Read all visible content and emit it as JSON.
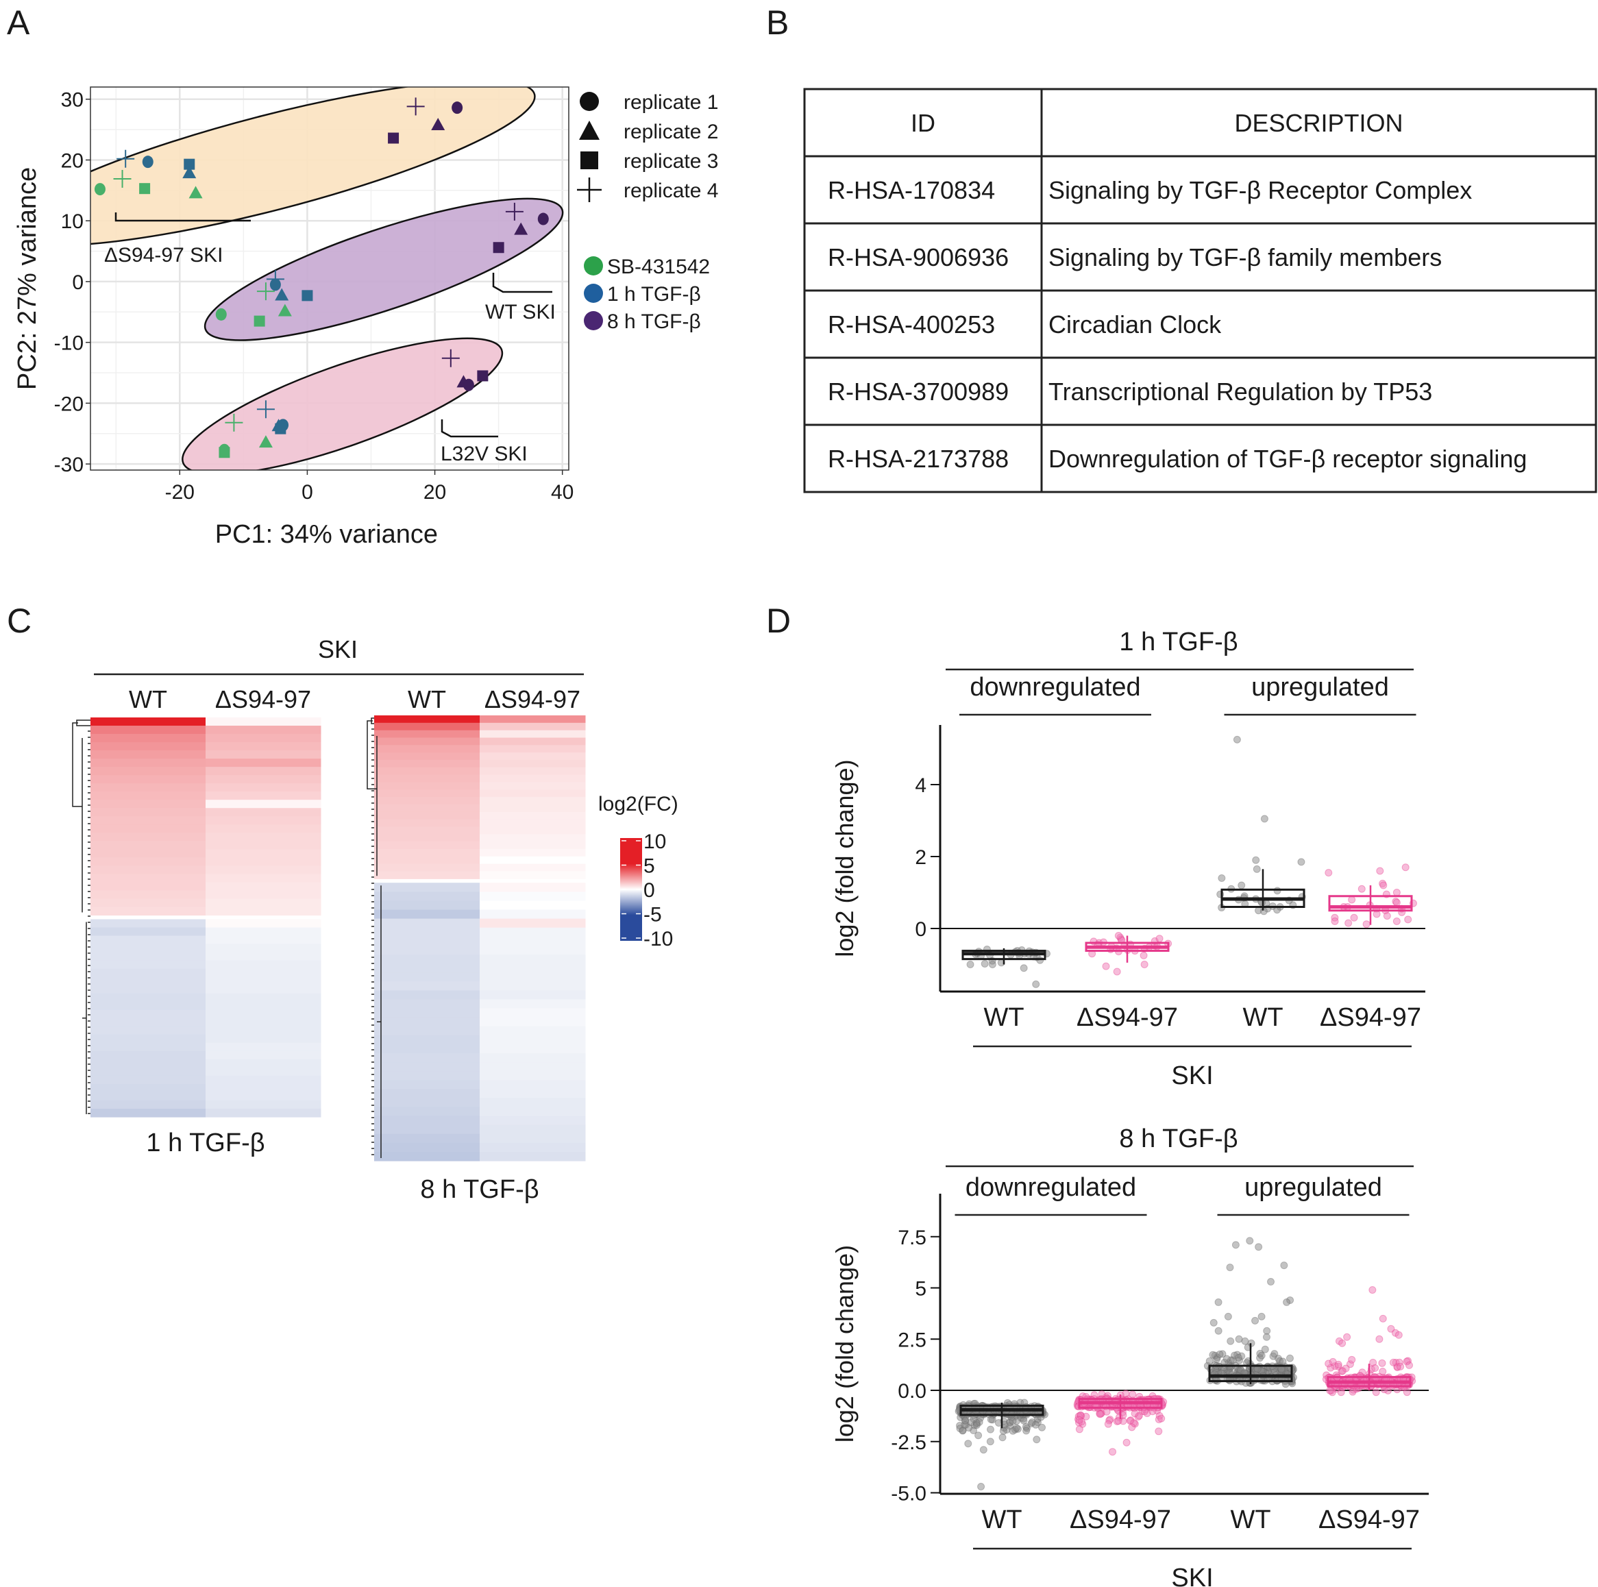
{
  "panels": {
    "a": "A",
    "b": "B",
    "c": "C",
    "d": "D"
  },
  "chart_data": [
    {
      "id": "A",
      "type": "scatter",
      "xlabel": "PC1: 34% variance",
      "ylabel": "PC2: 27% variance",
      "xlim": [
        -34,
        41
      ],
      "ylim": [
        -31,
        32
      ],
      "xticks": [
        -20,
        0,
        20,
        40
      ],
      "yticks": [
        30,
        20,
        10,
        0,
        -10,
        -20,
        -30
      ],
      "grid": true,
      "legend_shapes": [
        {
          "shape": "circle",
          "label": "replicate 1"
        },
        {
          "shape": "triangle",
          "label": "replicate 2"
        },
        {
          "shape": "square",
          "label": "replicate 3"
        },
        {
          "shape": "plus",
          "label": "replicate 4"
        }
      ],
      "legend_colors": [
        {
          "label": "SB-431542",
          "color": "#2ca14a"
        },
        {
          "label": "1 h TGF-β",
          "color": "#1f5f9e"
        },
        {
          "label": "8 h TGF-β",
          "color": "#4a2672"
        }
      ],
      "point_colors": {
        "SB-431542": "#48b06a",
        "1 h TGF-β": "#2d6a8e",
        "8 h TGF-β": "#3e1f5a"
      },
      "groups": [
        {
          "label": "ΔS94-97 SKI",
          "fill": "#fbe2c0"
        },
        {
          "label": "WT SKI",
          "fill": "#c7a8d2"
        },
        {
          "label": "L32V SKI",
          "fill": "#efc2d2"
        }
      ],
      "points": [
        {
          "group": "ΔS94-97 SKI",
          "treatment": "SB-431542",
          "replicate": 1,
          "x": -32.5,
          "y": 15.2
        },
        {
          "group": "ΔS94-97 SKI",
          "treatment": "SB-431542",
          "replicate": 4,
          "x": -29,
          "y": 16.9
        },
        {
          "group": "ΔS94-97 SKI",
          "treatment": "SB-431542",
          "replicate": 3,
          "x": -25.5,
          "y": 15.3
        },
        {
          "group": "ΔS94-97 SKI",
          "treatment": "SB-431542",
          "replicate": 2,
          "x": -17.5,
          "y": 14.6
        },
        {
          "group": "ΔS94-97 SKI",
          "treatment": "1 h TGF-β",
          "replicate": 4,
          "x": -28.5,
          "y": 20.2
        },
        {
          "group": "ΔS94-97 SKI",
          "treatment": "1 h TGF-β",
          "replicate": 1,
          "x": -25,
          "y": 19.7
        },
        {
          "group": "ΔS94-97 SKI",
          "treatment": "1 h TGF-β",
          "replicate": 3,
          "x": -18.5,
          "y": 19.3
        },
        {
          "group": "ΔS94-97 SKI",
          "treatment": "1 h TGF-β",
          "replicate": 2,
          "x": -18.5,
          "y": 17.9
        },
        {
          "group": "ΔS94-97 SKI",
          "treatment": "8 h TGF-β",
          "replicate": 4,
          "x": 17,
          "y": 28.8
        },
        {
          "group": "ΔS94-97 SKI",
          "treatment": "8 h TGF-β",
          "replicate": 1,
          "x": 23.5,
          "y": 28.6
        },
        {
          "group": "ΔS94-97 SKI",
          "treatment": "8 h TGF-β",
          "replicate": 2,
          "x": 20.5,
          "y": 25.8
        },
        {
          "group": "ΔS94-97 SKI",
          "treatment": "8 h TGF-β",
          "replicate": 3,
          "x": 13.5,
          "y": 23.6
        },
        {
          "group": "WT SKI",
          "treatment": "SB-431542",
          "replicate": 1,
          "x": -13.5,
          "y": -5.4
        },
        {
          "group": "WT SKI",
          "treatment": "SB-431542",
          "replicate": 3,
          "x": -7.5,
          "y": -6.5
        },
        {
          "group": "WT SKI",
          "treatment": "SB-431542",
          "replicate": 4,
          "x": -6.5,
          "y": -1.6
        },
        {
          "group": "WT SKI",
          "treatment": "SB-431542",
          "replicate": 2,
          "x": -3.5,
          "y": -4.8
        },
        {
          "group": "WT SKI",
          "treatment": "1 h TGF-β",
          "replicate": 4,
          "x": -5,
          "y": 0.4
        },
        {
          "group": "WT SKI",
          "treatment": "1 h TGF-β",
          "replicate": 1,
          "x": -5,
          "y": -0.5
        },
        {
          "group": "WT SKI",
          "treatment": "1 h TGF-β",
          "replicate": 2,
          "x": -4,
          "y": -2.2
        },
        {
          "group": "WT SKI",
          "treatment": "1 h TGF-β",
          "replicate": 3,
          "x": 0,
          "y": -2.3
        },
        {
          "group": "WT SKI",
          "treatment": "8 h TGF-β",
          "replicate": 4,
          "x": 32.5,
          "y": 11.5
        },
        {
          "group": "WT SKI",
          "treatment": "8 h TGF-β",
          "replicate": 1,
          "x": 37,
          "y": 10.3
        },
        {
          "group": "WT SKI",
          "treatment": "8 h TGF-β",
          "replicate": 2,
          "x": 33.5,
          "y": 8.6
        },
        {
          "group": "WT SKI",
          "treatment": "8 h TGF-β",
          "replicate": 3,
          "x": 30,
          "y": 5.6
        },
        {
          "group": "L32V SKI",
          "treatment": "SB-431542",
          "replicate": 4,
          "x": -11.5,
          "y": -23.2
        },
        {
          "group": "L32V SKI",
          "treatment": "SB-431542",
          "replicate": 2,
          "x": -6.5,
          "y": -26.4
        },
        {
          "group": "L32V SKI",
          "treatment": "SB-431542",
          "replicate": 1,
          "x": -13,
          "y": -27.7
        },
        {
          "group": "L32V SKI",
          "treatment": "SB-431542",
          "replicate": 3,
          "x": -13,
          "y": -28.1
        },
        {
          "group": "L32V SKI",
          "treatment": "1 h TGF-β",
          "replicate": 4,
          "x": -6.5,
          "y": -21
        },
        {
          "group": "L32V SKI",
          "treatment": "1 h TGF-β",
          "replicate": 2,
          "x": -4.5,
          "y": -23.7
        },
        {
          "group": "L32V SKI",
          "treatment": "1 h TGF-β",
          "replicate": 1,
          "x": -3.8,
          "y": -23.6
        },
        {
          "group": "L32V SKI",
          "treatment": "1 h TGF-β",
          "replicate": 3,
          "x": -4.2,
          "y": -24.2
        },
        {
          "group": "L32V SKI",
          "treatment": "8 h TGF-β",
          "replicate": 4,
          "x": 22.5,
          "y": -12.6
        },
        {
          "group": "L32V SKI",
          "treatment": "8 h TGF-β",
          "replicate": 2,
          "x": 24.5,
          "y": -16.5
        },
        {
          "group": "L32V SKI",
          "treatment": "8 h TGF-β",
          "replicate": 1,
          "x": 25.3,
          "y": -17
        },
        {
          "group": "L32V SKI",
          "treatment": "8 h TGF-β",
          "replicate": 3,
          "x": 27.5,
          "y": -15.5
        }
      ]
    },
    {
      "id": "B",
      "type": "table",
      "columns": [
        "ID",
        "DESCRIPTION"
      ],
      "rows": [
        [
          "R-HSA-170834",
          "Signaling by TGF-β Receptor Complex"
        ],
        [
          "R-HSA-9006936",
          "Signaling by TGF-β family members"
        ],
        [
          "R-HSA-400253",
          "Circadian Clock"
        ],
        [
          "R-HSA-3700989",
          "Transcriptional Regulation by TP53"
        ],
        [
          "R-HSA-2173788",
          "Downregulation of TGF-β receptor signaling"
        ]
      ]
    },
    {
      "id": "C",
      "type": "heatmap",
      "group_label": "SKI",
      "legend_title": "log2(FC)",
      "legend_ticks": [
        "10",
        "5",
        "0",
        "-5",
        "-10"
      ],
      "legend_range": [
        -10,
        10
      ],
      "colors": {
        "high": "#e41f26",
        "mid": "#ffffff",
        "low": "#2a4b9c"
      },
      "maps": [
        {
          "title": "1 h TGF-β",
          "columns": [
            "WT",
            "ΔS94-97"
          ],
          "up_fraction": 0.5,
          "wt_up": [
            8.5,
            4.2,
            3.6,
            3.3,
            3.0,
            2.7,
            2.5,
            2.3,
            2.1,
            2.0,
            1.9,
            1.8,
            1.7,
            1.7,
            1.6,
            1.5,
            1.5,
            1.4,
            1.3,
            1.2,
            1.2,
            1.1,
            1.0,
            0.9
          ],
          "mut_up": [
            0.2,
            2.4,
            2.2,
            2.0,
            1.8,
            2.6,
            1.8,
            1.6,
            1.4,
            1.2,
            0.2,
            1.3,
            1.2,
            1.1,
            1.0,
            1.0,
            0.9,
            0.9,
            0.8,
            0.7,
            0.6,
            0.6,
            0.5,
            0.5
          ],
          "wt_down": [
            -1.0,
            -1.3,
            -0.9,
            -0.9,
            -0.9,
            -0.9,
            -1.0,
            -1.0,
            -1.0,
            -1.1,
            -1.1,
            -1.0,
            -1.0,
            -1.0,
            -1.1,
            -1.1,
            -1.2,
            -1.2,
            -1.2,
            -1.2,
            -1.3,
            -1.3,
            -1.4,
            -1.8
          ],
          "mut_down": [
            0.1,
            -0.3,
            -0.3,
            -0.4,
            -0.4,
            -0.5,
            -0.5,
            -0.5,
            -0.5,
            -0.6,
            -0.6,
            -0.6,
            -0.6,
            -0.6,
            -0.6,
            -0.5,
            -0.5,
            -0.6,
            -0.6,
            -0.7,
            -0.7,
            -0.7,
            -0.8,
            -1.0
          ]
        },
        {
          "title": "8 h TGF-β",
          "columns": [
            "WT",
            "ΔS94-97"
          ],
          "up_fraction": 0.37,
          "wt_up": [
            8.0,
            5.0,
            3.6,
            3.0,
            2.6,
            2.4,
            2.2,
            2.0,
            1.9,
            1.8,
            1.7,
            1.6,
            1.5,
            1.5,
            1.4,
            1.3,
            1.3,
            1.2,
            1.1,
            1.1,
            1.0,
            0.9
          ],
          "mut_up": [
            3.5,
            1.5,
            0.5,
            1.6,
            1.2,
            0.9,
            1.0,
            0.8,
            0.7,
            0.6,
            0.7,
            0.5,
            0.5,
            0.4,
            0.4,
            0.4,
            0.3,
            0.3,
            0.2,
            0.0,
            0.2,
            0.1
          ],
          "wt_down": [
            -1.2,
            -1.4,
            -1.5,
            -1.9,
            -1.0,
            -1.0,
            -1.0,
            -1.0,
            -1.1,
            -1.1,
            -1.1,
            -1.0,
            -1.3,
            -1.2,
            -1.2,
            -1.2,
            -1.2,
            -1.3,
            -1.3,
            -1.2,
            -1.2,
            -1.2,
            -1.3,
            -1.4,
            -1.4,
            -1.5,
            -1.6,
            -1.6,
            -1.8,
            -1.9,
            -2.0
          ],
          "mut_down": [
            0.2,
            -0.1,
            0.0,
            -0.2,
            0.6,
            -0.3,
            -0.3,
            -0.3,
            -0.4,
            -0.4,
            -0.4,
            -0.4,
            -0.5,
            -0.3,
            -0.2,
            -0.2,
            -0.3,
            -0.3,
            -0.3,
            -0.4,
            -0.4,
            -0.4,
            -0.5,
            -0.5,
            -0.6,
            -0.6,
            -0.7,
            -0.8,
            -0.8,
            -0.9,
            -1.0
          ]
        }
      ]
    },
    {
      "id": "D-top",
      "type": "scatter",
      "subtype": "boxplot-with-jitter",
      "title": "1 h TGF-β",
      "groups": [
        "downregulated",
        "upregulated"
      ],
      "categories": [
        "WT",
        "ΔS94-97",
        "WT",
        "ΔS94-97"
      ],
      "xgroup_label": "SKI",
      "ylabel": "log2 (fold change)",
      "ylim": [
        -1.8,
        5.6
      ],
      "yticks": [
        0,
        2,
        4
      ],
      "series_colors": {
        "WT": "#1a1a1a",
        "ΔS94-97": "#e5388a"
      },
      "boxes": [
        {
          "category": "WT",
          "group": "downregulated",
          "q1": -0.85,
          "median": -0.7,
          "q3": -0.62,
          "whisker_low": -1.0,
          "whisker_high": -0.55,
          "points": [
            -0.62,
            -0.58,
            -0.65,
            -0.7,
            -0.75,
            -0.68,
            -0.72,
            -0.8,
            -0.6,
            -0.66,
            -0.7,
            -0.74,
            -0.63,
            -0.69,
            -0.73,
            -0.77,
            -0.64,
            -0.71,
            -0.67,
            -0.78,
            -1.0,
            -0.95,
            -1.1,
            -0.9,
            -0.98,
            -1.0,
            -0.88,
            -1.55
          ]
        },
        {
          "category": "ΔS94-97",
          "group": "downregulated",
          "q1": -0.62,
          "median": -0.52,
          "q3": -0.4,
          "whisker_low": -0.95,
          "whisker_high": -0.2,
          "points": [
            -0.25,
            -0.3,
            -0.35,
            -0.4,
            -0.45,
            -0.5,
            -0.55,
            -0.6,
            -0.42,
            -0.47,
            -0.52,
            -0.38,
            -0.33,
            -0.28,
            -0.48,
            -0.58,
            -0.44,
            -0.5,
            -0.56,
            -0.36,
            -0.62,
            -0.7,
            -0.75,
            -0.2,
            -1.0,
            -1.05,
            -1.2,
            -0.64
          ]
        },
        {
          "category": "WT",
          "group": "upregulated",
          "q1": 0.6,
          "median": 0.82,
          "q3": 1.08,
          "whisker_low": 0.5,
          "whisker_high": 1.65,
          "points": [
            1.9,
            1.85,
            1.65,
            1.4,
            1.2,
            1.1,
            1.05,
            0.95,
            0.9,
            0.85,
            0.82,
            0.8,
            0.78,
            0.75,
            0.7,
            0.65,
            0.62,
            0.6,
            0.58,
            0.55,
            0.5,
            0.48,
            0.52,
            0.68,
            0.72,
            0.88,
            5.25,
            3.05
          ]
        },
        {
          "category": "ΔS94-97",
          "group": "upregulated",
          "q1": 0.5,
          "median": 0.6,
          "q3": 0.9,
          "whisker_low": 0.1,
          "whisker_high": 1.2,
          "points": [
            1.7,
            1.6,
            1.55,
            1.25,
            1.2,
            1.1,
            1.0,
            0.95,
            0.8,
            0.75,
            0.7,
            0.65,
            0.6,
            0.55,
            0.5,
            0.45,
            0.4,
            0.35,
            0.3,
            0.25,
            0.2,
            0.15,
            0.12,
            0.2,
            0.3,
            0.55,
            0.6,
            0.72
          ]
        }
      ]
    },
    {
      "id": "D-bottom",
      "type": "scatter",
      "subtype": "boxplot-with-jitter",
      "title": "8 h TGF-β",
      "groups": [
        "downregulated",
        "upregulated"
      ],
      "categories": [
        "WT",
        "ΔS94-97",
        "WT",
        "ΔS94-97"
      ],
      "xgroup_label": "SKI",
      "ylabel": "log2 (fold change)",
      "ylim": [
        -5.0,
        9.5
      ],
      "yticks": [
        7.5,
        5,
        2.5,
        0.0,
        -2.5,
        -5.0
      ],
      "ytick_labels": [
        "7.5",
        "5",
        "2.5",
        "0.0",
        "-2.5",
        "-5.0"
      ],
      "series_colors": {
        "WT": "#1a1a1a",
        "ΔS94-97": "#e5388a"
      },
      "boxes": [
        {
          "category": "WT",
          "group": "downregulated",
          "q1": -1.2,
          "median": -0.95,
          "q3": -0.75,
          "whisker_low": -1.85,
          "whisker_high": -0.6,
          "n_points": 300,
          "spread": [
            -2.0,
            -0.6
          ],
          "outliers": [
            -4.7,
            -2.9,
            -2.6,
            -2.5,
            -2.4,
            -2.3,
            -2.2
          ]
        },
        {
          "category": "ΔS94-97",
          "group": "downregulated",
          "q1": -0.85,
          "median": -0.6,
          "q3": -0.42,
          "whisker_low": -1.4,
          "whisker_high": -0.2,
          "n_points": 300,
          "spread": [
            -1.7,
            -0.15
          ],
          "outliers": [
            -3.0,
            -2.55,
            -2.0,
            -1.9,
            -1.8
          ]
        },
        {
          "category": "WT",
          "group": "upregulated",
          "q1": 0.45,
          "median": 0.7,
          "q3": 1.2,
          "whisker_low": 0.3,
          "whisker_high": 2.3,
          "n_points": 220,
          "spread": [
            0.3,
            1.8
          ],
          "outliers": [
            7.3,
            7.1,
            7.0,
            6.1,
            6.0,
            5.3,
            4.4,
            4.3,
            4.3,
            3.6,
            3.6,
            3.4,
            3.3,
            2.9,
            2.9,
            2.6,
            2.5,
            2.4,
            2.4,
            2.3,
            2.1,
            2.0
          ]
        },
        {
          "category": "ΔS94-97",
          "group": "upregulated",
          "q1": 0.2,
          "median": 0.4,
          "q3": 0.65,
          "whisker_low": 0.0,
          "whisker_high": 1.3,
          "n_points": 260,
          "spread": [
            -0.1,
            1.5
          ],
          "outliers": [
            4.9,
            3.5,
            3.0,
            2.8,
            2.7,
            2.6,
            2.5,
            2.4,
            2.3
          ]
        }
      ]
    }
  ]
}
